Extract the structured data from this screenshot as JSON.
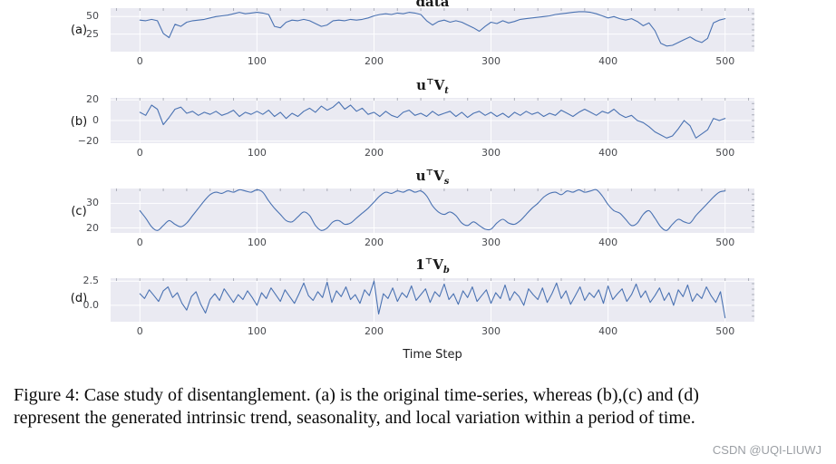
{
  "figure": {
    "xlabel": "Time Step",
    "caption_line1": "Figure 4: Case study of disentanglement. (a) is the original time-series, whereas (b),(c) and (d)",
    "caption_line2": "represent the generated intrinsic trend, seasonality, and local variation within a period of time.",
    "watermark": "CSDN @UQI-LIUWJ"
  },
  "colors": {
    "plot_background": "#eaeaf2",
    "gridline": "#ffffff",
    "line": "#4a72b2",
    "tick_text": "#47494e",
    "minor_tick": "#9094a0"
  },
  "chart_data": {
    "type": "line",
    "title": "Case study of disentanglement",
    "xlabel": "Time Step",
    "grid": true,
    "legend_position": "none",
    "xlim": [
      -25,
      525
    ],
    "x_ticks": [
      0,
      100,
      200,
      300,
      400,
      500
    ],
    "subplots": [
      {
        "id": "a",
        "label": "(a)",
        "title": {
          "lead": "data",
          "sup": "",
          "main": "",
          "sub": ""
        },
        "ylim": [
          0,
          62
        ],
        "y_ticks": [
          {
            "value": 50,
            "label": "50"
          },
          {
            "value": 25,
            "label": "25"
          }
        ],
        "smooth": false,
        "x_start": 0,
        "x_step": 5,
        "values": [
          45,
          44,
          46,
          44,
          26,
          20,
          39,
          36,
          42,
          44,
          45,
          46,
          48,
          50,
          51,
          52,
          54,
          56,
          54,
          55,
          56,
          55,
          53,
          36,
          34,
          42,
          45,
          44,
          46,
          44,
          40,
          36,
          38,
          44,
          45,
          44,
          46,
          45,
          46,
          48,
          51,
          53,
          54,
          53,
          55,
          54,
          56,
          55,
          53,
          44,
          38,
          43,
          45,
          42,
          44,
          42,
          38,
          34,
          29,
          36,
          42,
          40,
          44,
          41,
          43,
          46,
          47,
          48,
          49,
          50,
          51,
          53,
          54,
          55,
          56,
          57,
          57,
          56,
          54,
          51,
          48,
          50,
          47,
          45,
          47,
          43,
          37,
          41,
          30,
          12,
          8,
          9,
          13,
          17,
          21,
          16,
          13,
          19,
          41,
          45,
          47
        ]
      },
      {
        "id": "b",
        "label": "(b)",
        "title": {
          "lead": "u",
          "sup": "⊤",
          "main": "V",
          "sub": "t"
        },
        "ylim": [
          -22,
          22
        ],
        "y_ticks": [
          {
            "value": 20,
            "label": "20"
          },
          {
            "value": 0,
            "label": "0"
          },
          {
            "value": -20,
            "label": "−20"
          }
        ],
        "smooth": false,
        "x_start": 0,
        "x_step": 5,
        "values": [
          8,
          5,
          15,
          11,
          -4,
          3,
          11,
          13,
          7,
          9,
          5,
          8,
          6,
          9,
          5,
          7,
          10,
          4,
          8,
          6,
          9,
          6,
          10,
          4,
          8,
          2,
          7,
          4,
          9,
          12,
          8,
          14,
          10,
          13,
          18,
          11,
          15,
          9,
          12,
          6,
          8,
          4,
          9,
          5,
          3,
          8,
          10,
          5,
          7,
          4,
          9,
          5,
          7,
          9,
          4,
          8,
          3,
          7,
          9,
          5,
          8,
          4,
          7,
          3,
          8,
          5,
          9,
          6,
          8,
          4,
          7,
          5,
          10,
          7,
          4,
          8,
          11,
          8,
          5,
          9,
          7,
          11,
          6,
          3,
          5,
          0,
          -2,
          -6,
          -11,
          -14,
          -17,
          -15,
          -8,
          0,
          -5,
          -17,
          -13,
          -9,
          2,
          0,
          2
        ]
      },
      {
        "id": "c",
        "label": "(c)",
        "title": {
          "lead": "u",
          "sup": "⊤",
          "main": "V",
          "sub": "s"
        },
        "ylim": [
          18,
          36
        ],
        "y_ticks": [
          {
            "value": 30,
            "label": "30"
          },
          {
            "value": 20,
            "label": "20"
          }
        ],
        "smooth": true,
        "x_start": 0,
        "x_step": 5,
        "values": [
          27,
          24,
          20.5,
          19,
          21,
          23,
          21.5,
          20.5,
          22,
          25,
          28,
          31,
          33.5,
          34.5,
          34,
          35,
          34.5,
          35.5,
          35,
          34.5,
          35.5,
          34.5,
          31,
          28,
          25.5,
          23,
          22.5,
          24.5,
          26.5,
          25,
          21,
          19,
          20,
          22.5,
          23,
          21.5,
          22,
          24,
          26,
          28,
          30.5,
          33,
          34.5,
          34,
          35,
          34.5,
          35.5,
          34.5,
          35,
          33,
          29,
          26.5,
          25.5,
          26.5,
          25,
          22,
          21,
          22.5,
          21,
          19.5,
          19.5,
          22,
          23.5,
          22,
          21.5,
          23,
          25.5,
          28,
          30,
          32.5,
          34,
          34.5,
          33.5,
          35,
          34.5,
          35.5,
          34.5,
          35,
          35.5,
          33,
          29.5,
          27,
          26,
          23.5,
          21,
          22,
          25.5,
          27,
          24,
          20.5,
          19,
          21.5,
          23.5,
          22.5,
          22,
          25,
          27.5,
          30,
          32.5,
          34.5,
          35
        ]
      },
      {
        "id": "d",
        "label": "(d)",
        "title": {
          "lead": "1",
          "sup": "⊤",
          "main": "V",
          "sub": "b"
        },
        "ylim": [
          -1.7,
          2.8
        ],
        "y_ticks": [
          {
            "value": 2.5,
            "label": "2.5"
          },
          {
            "value": 0,
            "label": "0.0"
          }
        ],
        "smooth": false,
        "x_start": 0,
        "x_step": 4,
        "values": [
          1.2,
          0.7,
          1.6,
          1.0,
          0.4,
          1.5,
          1.9,
          0.8,
          1.3,
          0.2,
          -0.5,
          0.9,
          1.4,
          0.1,
          -0.8,
          0.6,
          1.2,
          0.5,
          1.7,
          1.0,
          0.3,
          1.1,
          0.6,
          1.5,
          0.8,
          0.0,
          1.3,
          0.7,
          1.8,
          1.1,
          0.4,
          1.6,
          0.9,
          0.2,
          1.2,
          2.3,
          1.0,
          0.5,
          1.4,
          0.8,
          2.4,
          0.3,
          1.5,
          0.9,
          1.9,
          0.6,
          1.1,
          0.2,
          1.6,
          1.0,
          2.5,
          -0.9,
          1.2,
          0.7,
          1.8,
          0.4,
          1.3,
          0.8,
          2.0,
          0.5,
          1.1,
          1.7,
          0.3,
          1.4,
          0.9,
          2.2,
          0.6,
          1.2,
          0.1,
          1.5,
          0.8,
          1.9,
          0.4,
          1.0,
          1.6,
          0.2,
          1.3,
          0.7,
          2.1,
          0.5,
          1.4,
          0.9,
          0.0,
          1.7,
          1.1,
          0.6,
          1.8,
          0.3,
          1.2,
          2.3,
          0.7,
          1.5,
          0.1,
          1.0,
          1.9,
          0.5,
          1.3,
          0.8,
          1.6,
          0.2,
          2.0,
          0.6,
          1.2,
          1.7,
          0.4,
          1.1,
          2.2,
          0.8,
          1.5,
          0.3,
          1.0,
          1.8,
          0.5,
          1.3,
          0.0,
          1.6,
          0.9,
          2.1,
          0.4,
          1.2,
          0.7,
          1.9,
          1.0,
          0.3,
          1.4,
          -1.3
        ]
      }
    ]
  }
}
